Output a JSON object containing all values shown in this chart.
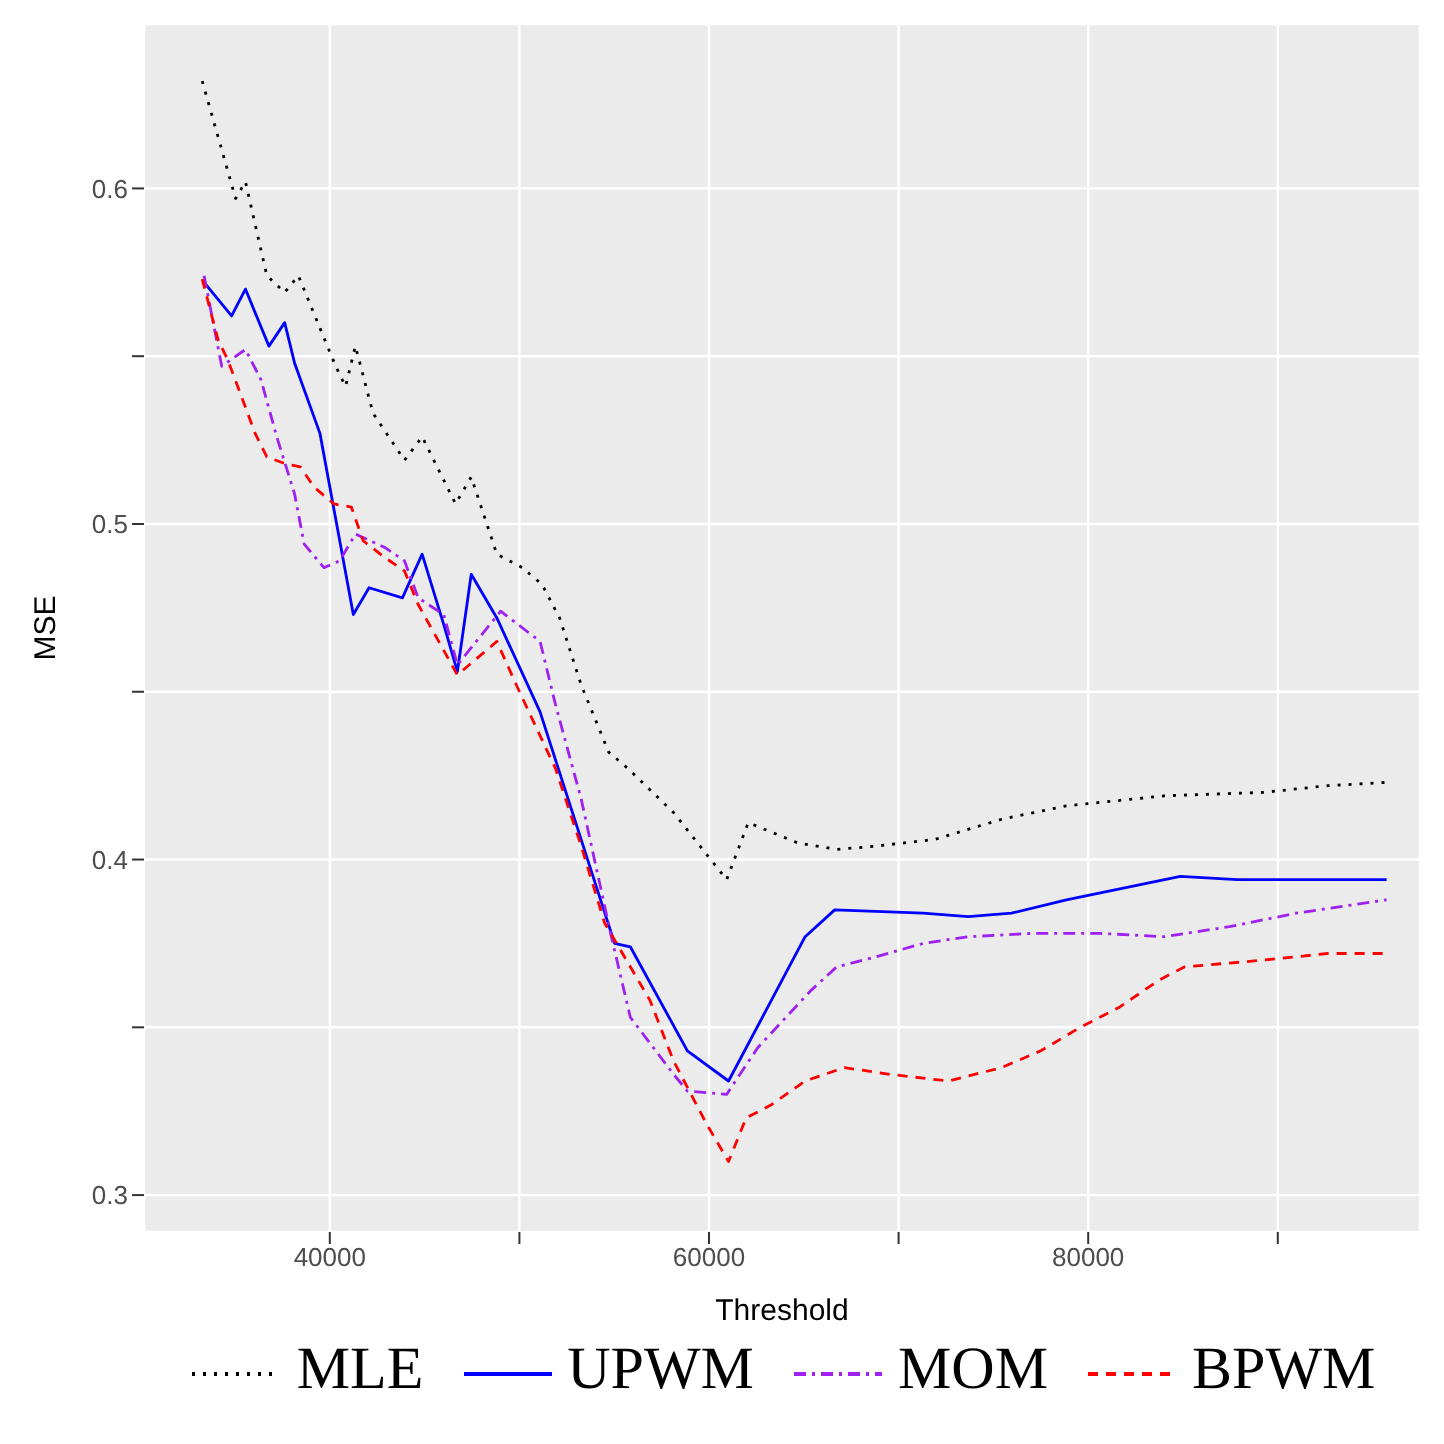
{
  "chart_data": {
    "type": "line",
    "xlabel": "Threshold",
    "ylabel": "MSE",
    "xlim": [
      30200,
      97500
    ],
    "ylim": [
      0.289,
      0.649
    ],
    "xticks": [
      40000,
      {
        "value": 50000,
        "label": null
      },
      60000,
      {
        "value": 70000,
        "label": null
      },
      80000,
      {
        "value": 90000,
        "label": null
      }
    ],
    "yticks": [
      0.3,
      {
        "value": 0.35,
        "label": null
      },
      0.4,
      {
        "value": 0.45,
        "label": null
      },
      0.5,
      {
        "value": 0.55,
        "label": null
      },
      0.6
    ],
    "grid": true,
    "legend": "bottom",
    "marker": "none",
    "series": [
      {
        "name": "MLE",
        "color": "#000000",
        "line_style": "dotted",
        "x": [
          33270,
          35030,
          35550,
          36680,
          37620,
          38340,
          40310,
          40830,
          41350,
          42280,
          43940,
          44870,
          46630,
          47460,
          48810,
          50150,
          51190,
          52120,
          53260,
          54710,
          55750,
          58130,
          60930,
          62070,
          64660,
          66730,
          68800,
          71910,
          75430,
          78850,
          84030,
          89210,
          92630,
          95740
        ],
        "values": [
          0.632,
          0.597,
          0.602,
          0.574,
          0.569,
          0.574,
          0.547,
          0.541,
          0.553,
          0.533,
          0.519,
          0.526,
          0.506,
          0.514,
          0.491,
          0.487,
          0.482,
          0.472,
          0.452,
          0.432,
          0.427,
          0.414,
          0.394,
          0.411,
          0.405,
          0.403,
          0.404,
          0.406,
          0.412,
          0.416,
          0.419,
          0.42,
          0.422,
          0.423
        ]
      },
      {
        "name": "UPWM",
        "color": "#0000ff",
        "line_style": "solid",
        "x": [
          33370,
          34820,
          35550,
          36790,
          37620,
          38140,
          39480,
          41240,
          42070,
          43830,
          44870,
          46010,
          46730,
          47460,
          48810,
          51090,
          55020,
          55850,
          58860,
          61030,
          65070,
          66630,
          71290,
          73670,
          75950,
          78850,
          84860,
          87860,
          93150,
          95740
        ],
        "values": [
          0.572,
          0.562,
          0.57,
          0.553,
          0.56,
          0.548,
          0.527,
          0.473,
          0.481,
          0.478,
          0.491,
          0.47,
          0.456,
          0.485,
          0.472,
          0.444,
          0.375,
          0.374,
          0.343,
          0.334,
          0.377,
          0.385,
          0.384,
          0.383,
          0.384,
          0.388,
          0.395,
          0.394,
          0.394,
          0.394
        ]
      },
      {
        "name": "MOM",
        "color": "#a020f0",
        "line_style": "dashdot",
        "x": [
          33370,
          33990,
          34300,
          35550,
          36370,
          37200,
          38140,
          38650,
          39690,
          40520,
          41350,
          42900,
          43940,
          44660,
          46010,
          46730,
          49010,
          51090,
          51910,
          53260,
          54810,
          55850,
          58130,
          58860,
          60930,
          62580,
          65380,
          66730,
          68800,
          71290,
          73670,
          77090,
          80610,
          84030,
          87450,
          90970,
          95740
        ],
        "values": [
          0.574,
          0.556,
          0.547,
          0.552,
          0.543,
          0.526,
          0.509,
          0.494,
          0.487,
          0.489,
          0.497,
          0.493,
          0.489,
          0.478,
          0.473,
          0.458,
          0.474,
          0.465,
          0.446,
          0.418,
          0.378,
          0.353,
          0.336,
          0.331,
          0.33,
          0.344,
          0.361,
          0.368,
          0.371,
          0.375,
          0.377,
          0.378,
          0.378,
          0.377,
          0.38,
          0.384,
          0.388
        ]
      },
      {
        "name": "BPWM",
        "color": "#ff0000",
        "line_style": "dashed",
        "x": [
          33270,
          34100,
          34610,
          35340,
          36060,
          36680,
          37620,
          38450,
          39170,
          40210,
          41140,
          41760,
          42900,
          43940,
          44660,
          46730,
          48810,
          49840,
          51910,
          53260,
          54500,
          55750,
          56890,
          58130,
          59890,
          61030,
          61960,
          63310,
          65070,
          67140,
          69530,
          72630,
          75430,
          77500,
          79580,
          81650,
          83720,
          85070,
          89210,
          92630,
          95740
        ],
        "values": [
          0.573,
          0.555,
          0.549,
          0.538,
          0.527,
          0.52,
          0.518,
          0.517,
          0.511,
          0.506,
          0.505,
          0.495,
          0.49,
          0.486,
          0.476,
          0.455,
          0.465,
          0.452,
          0.427,
          0.404,
          0.381,
          0.369,
          0.358,
          0.34,
          0.321,
          0.31,
          0.323,
          0.327,
          0.334,
          0.338,
          0.336,
          0.334,
          0.338,
          0.343,
          0.35,
          0.356,
          0.364,
          0.368,
          0.37,
          0.372,
          0.372
        ]
      }
    ]
  }
}
